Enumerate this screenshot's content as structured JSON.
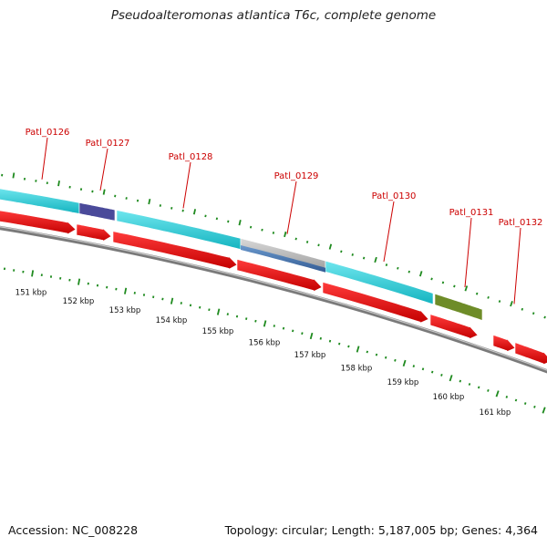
{
  "title": "Pseudoalteromonas atlantica T6c, complete genome",
  "footer": {
    "accession": "Accession: NC_008228",
    "summary": "Topology: circular; Length: 5,187,005 bp; Genes: 4,364"
  },
  "colors": {
    "cds": "#ee0000",
    "backbone": "#7a7a7a",
    "gc_ticks": "#1e8a1e",
    "gene_label": "#cc0000",
    "cog_cyan": "#1ec8d2",
    "cog_purple": "#4a4a9a",
    "cog_gray": "#b4b4b4",
    "cog_blue": "#4a7ab4",
    "cog_olive": "#6e8c28"
  },
  "gene_labels": [
    "Patl_0126",
    "Patl_0127",
    "Patl_0128",
    "Patl_0129",
    "Patl_0130",
    "Patl_0131",
    "Patl_0132"
  ],
  "kbp_labels": [
    "151 kbp",
    "152 kbp",
    "153 kbp",
    "154 kbp",
    "155 kbp",
    "156 kbp",
    "157 kbp",
    "158 kbp",
    "159 kbp",
    "160 kbp",
    "161 kbp"
  ]
}
